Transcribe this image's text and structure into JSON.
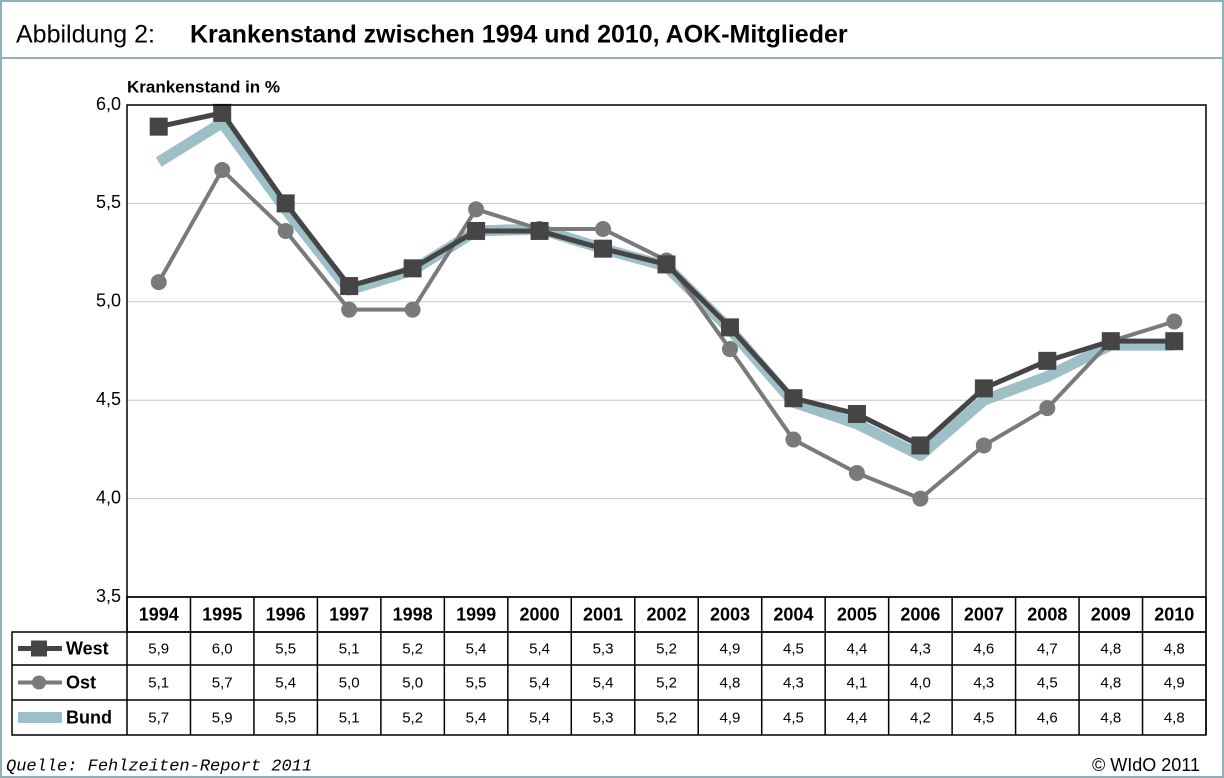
{
  "chart_data": {
    "type": "line",
    "figure_label": "Abbildung 2:",
    "title": "Krankenstand zwischen 1994 und 2010, AOK-Mitglieder",
    "y_label": "Krankenstand in %",
    "source": "Quelle: Fehlzeiten-Report 2011",
    "copyright": "© WIdO 2011",
    "categories": [
      "1994",
      "1995",
      "1996",
      "1997",
      "1998",
      "1999",
      "2000",
      "2001",
      "2002",
      "2003",
      "2004",
      "2005",
      "2006",
      "2007",
      "2008",
      "2009",
      "2010"
    ],
    "ylim": [
      3.5,
      6.0
    ],
    "yticks": [
      {
        "value": 3.5,
        "label": "3,5"
      },
      {
        "value": 4.0,
        "label": "4,0"
      },
      {
        "value": 4.5,
        "label": "4,5"
      },
      {
        "value": 5.0,
        "label": "5,0"
      },
      {
        "value": 5.5,
        "label": "5,5"
      },
      {
        "value": 6.0,
        "label": "6,0"
      }
    ],
    "grid": true,
    "series": [
      {
        "name": "West",
        "color": "#454545",
        "marker": "square",
        "values": [
          5.89,
          5.96,
          5.5,
          5.08,
          5.17,
          5.36,
          5.36,
          5.27,
          5.19,
          4.87,
          4.51,
          4.43,
          4.27,
          4.56,
          4.7,
          4.8,
          4.8
        ],
        "value_labels": [
          "5,9",
          "6,0",
          "5,5",
          "5,1",
          "5,2",
          "5,4",
          "5,4",
          "5,3",
          "5,2",
          "4,9",
          "4,5",
          "4,4",
          "4,3",
          "4,6",
          "4,7",
          "4,8",
          "4,8"
        ]
      },
      {
        "name": "Ost",
        "color": "#7a7a7a",
        "marker": "circle",
        "values": [
          5.1,
          5.67,
          5.36,
          4.96,
          4.96,
          5.47,
          5.37,
          5.37,
          5.21,
          4.76,
          4.3,
          4.13,
          4.0,
          4.27,
          4.46,
          4.8,
          4.9
        ],
        "value_labels": [
          "5,1",
          "5,7",
          "5,4",
          "5,0",
          "5,0",
          "5,5",
          "5,4",
          "5,4",
          "5,2",
          "4,8",
          "4,3",
          "4,1",
          "4,0",
          "4,3",
          "4,5",
          "4,8",
          "4,9"
        ]
      },
      {
        "name": "Bund",
        "color": "#9dbfc8",
        "marker": "none",
        "values": [
          5.71,
          5.91,
          5.47,
          5.06,
          5.16,
          5.36,
          5.37,
          5.27,
          5.18,
          4.86,
          4.49,
          4.38,
          4.22,
          4.5,
          4.62,
          4.78,
          4.78
        ],
        "value_labels": [
          "5,7",
          "5,9",
          "5,5",
          "5,1",
          "5,2",
          "5,4",
          "5,4",
          "5,3",
          "5,2",
          "4,9",
          "4,5",
          "4,4",
          "4,2",
          "4,5",
          "4,6",
          "4,8",
          "4,8"
        ]
      }
    ]
  }
}
